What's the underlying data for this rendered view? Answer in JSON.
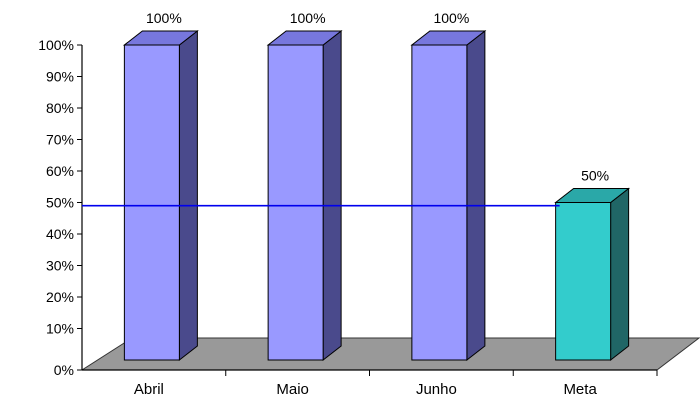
{
  "chart_data": {
    "type": "bar",
    "style": "3d-bar",
    "categories": [
      "Abril",
      "Maio",
      "Junho",
      "Meta"
    ],
    "values": [
      100,
      100,
      100,
      50
    ],
    "data_labels": [
      "100%",
      "100%",
      "100%",
      "50%"
    ],
    "ylim": [
      0,
      100
    ],
    "yticks": [
      "0%",
      "10%",
      "20%",
      "30%",
      "40%",
      "50%",
      "60%",
      "70%",
      "80%",
      "90%",
      "100%"
    ],
    "reference_line": {
      "value": 49
    },
    "colors": {
      "bar_front": "#9999ff",
      "bar_top": "#7777dd",
      "bar_side": "#4a4a8c",
      "meta_front": "#33cccc",
      "meta_top": "#2aa8a8",
      "meta_side": "#206666",
      "floor": "#999999",
      "reference_line": "#0000ee"
    }
  }
}
